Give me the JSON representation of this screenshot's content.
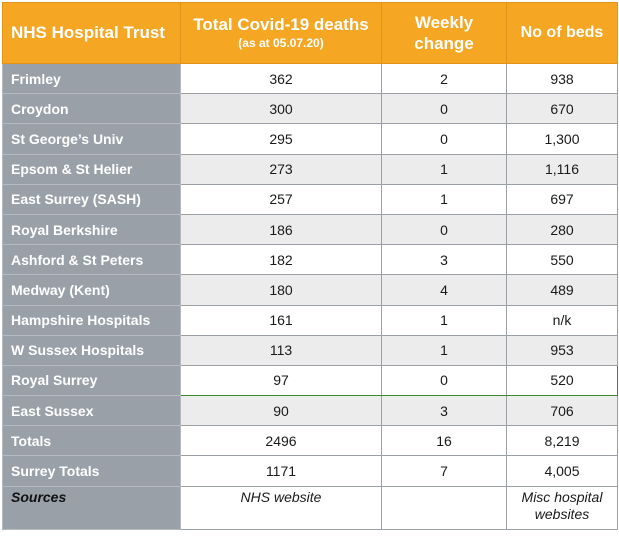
{
  "headers": {
    "trust": "NHS Hospital Trust",
    "deaths_main": "Total Covid-19 deaths",
    "deaths_sub": "(as at 05.07.20)",
    "weekly_line1": "Weekly",
    "weekly_line2": "change",
    "beds": "No of beds"
  },
  "rows": [
    {
      "name": "Frimley",
      "deaths": "362",
      "weekly": "2",
      "beds": "938"
    },
    {
      "name": "Croydon",
      "deaths": "300",
      "weekly": "0",
      "beds": "670"
    },
    {
      "name": "St George’s Univ",
      "deaths": "295",
      "weekly": "0",
      "beds": "1,300"
    },
    {
      "name": "Epsom & St Helier",
      "deaths": "273",
      "weekly": "1",
      "beds": "1,116"
    },
    {
      "name": "East Surrey (SASH)",
      "deaths": "257",
      "weekly": "1",
      "beds": "697"
    },
    {
      "name": "Royal Berkshire",
      "deaths": "186",
      "weekly": "0",
      "beds": "280"
    },
    {
      "name": "Ashford & St Peters",
      "deaths": "182",
      "weekly": "3",
      "beds": "550"
    },
    {
      "name": "Medway (Kent)",
      "deaths": "180",
      "weekly": "4",
      "beds": "489"
    },
    {
      "name": "Hampshire Hospitals",
      "deaths": "161",
      "weekly": "1",
      "beds": "n/k"
    },
    {
      "name": "W Sussex Hospitals",
      "deaths": "113",
      "weekly": "1",
      "beds": "953"
    },
    {
      "name": "Royal Surrey",
      "deaths": "97",
      "weekly": "0",
      "beds": "520"
    },
    {
      "name": "East Sussex",
      "deaths": "90",
      "weekly": "3",
      "beds": "706"
    }
  ],
  "totals": {
    "name": "Totals",
    "deaths": "2496",
    "weekly": "16",
    "beds": "8,219"
  },
  "surrey_totals": {
    "name": "Surrey Totals",
    "deaths": "1171",
    "weekly": "7",
    "beds": "4,005"
  },
  "sources": {
    "label": "Sources",
    "deaths": "NHS website",
    "weekly": "",
    "beds_line1": "Misc hospital",
    "beds_line2": "websites"
  },
  "colors": {
    "header": "#f5a623",
    "name_column": "#9aa0a8",
    "alt_row": "#ececec",
    "highlight_border": "#3b8a2e"
  }
}
